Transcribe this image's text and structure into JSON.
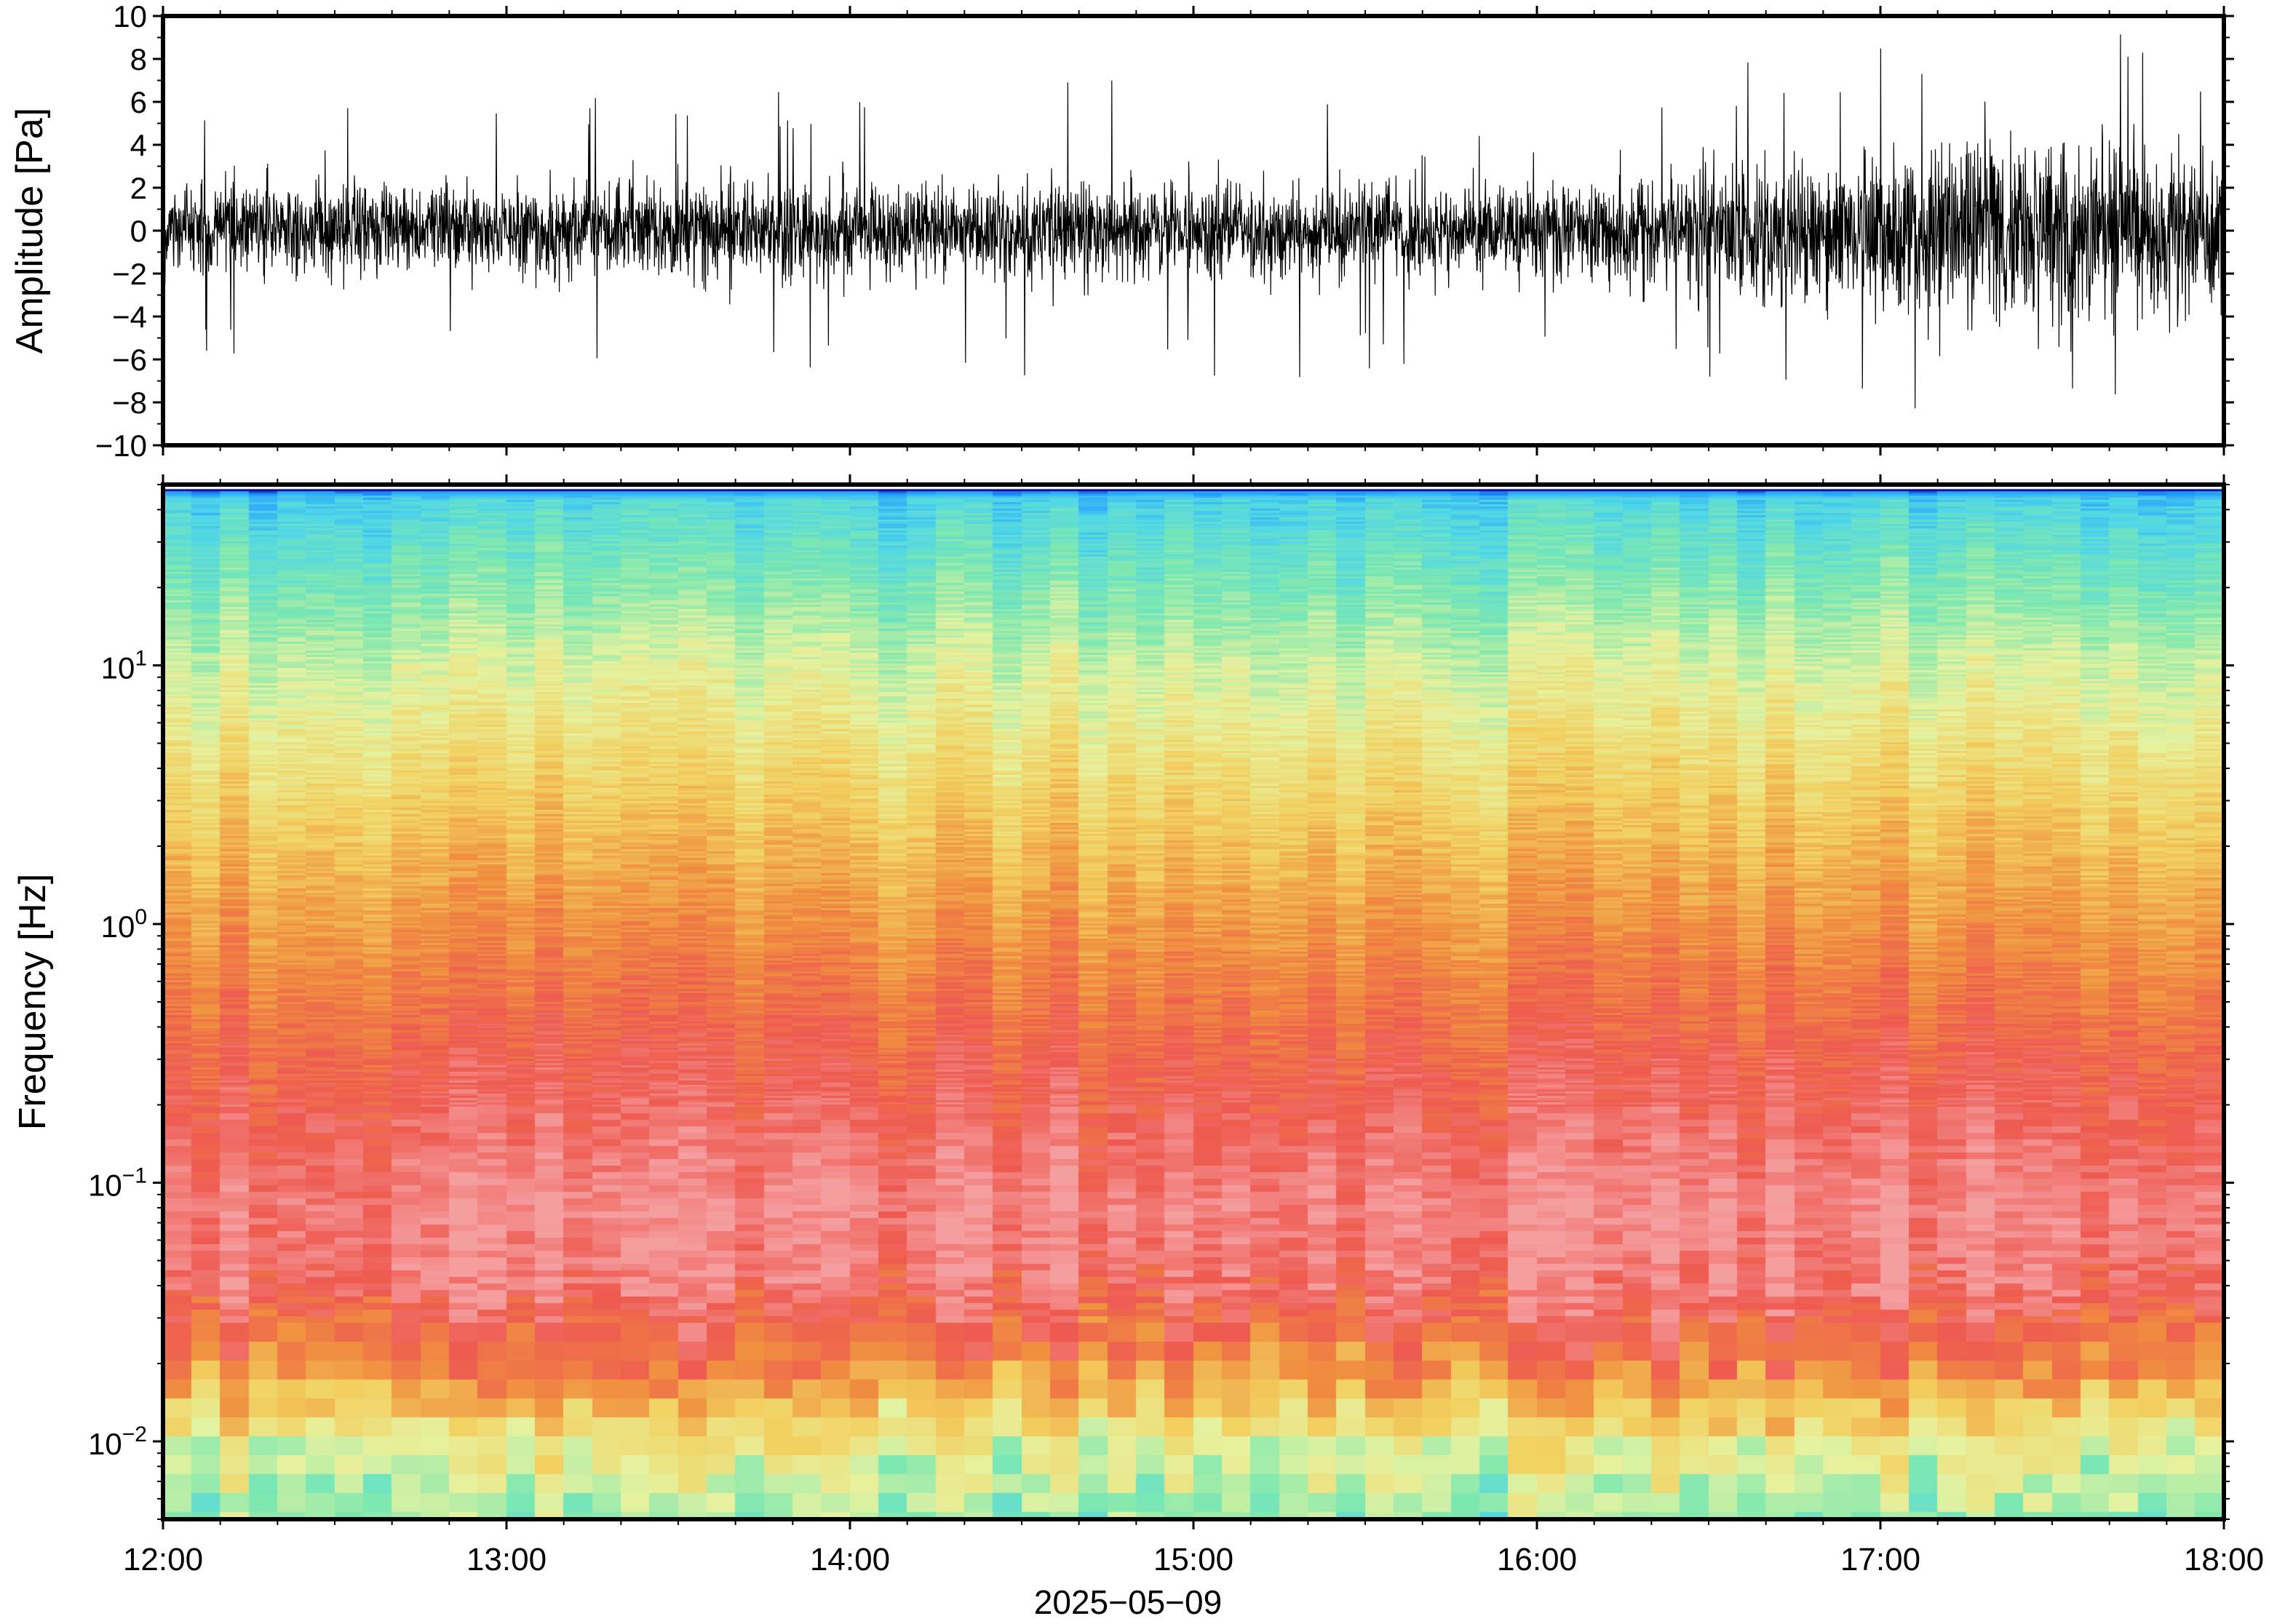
{
  "chart_data": [
    {
      "type": "line",
      "panel": "waveform",
      "title": "",
      "xlabel": "",
      "ylabel": "Amplitude [Pa]",
      "xlim": [
        "12:00",
        "18:00"
      ],
      "ylim": [
        -10,
        10
      ],
      "yticks": [
        10,
        8,
        6,
        4,
        2,
        0,
        -2,
        -4,
        -6,
        -8,
        -10
      ],
      "ytick_labels": [
        "10",
        "8",
        "6",
        "4",
        "2",
        "0",
        "−2",
        "−4",
        "−6",
        "−8",
        "−10"
      ],
      "series": [
        {
          "color": "#000000",
          "description_values": {
            "time": [
              "12:00",
              "13:00",
              "14:00",
              "15:00",
              "16:00",
              "17:00",
              "17:30",
              "18:00"
            ],
            "typical_envelope_pa": [
              2.5,
              2.5,
              2.6,
              2.6,
              2.4,
              4.5,
              5.0,
              4.5
            ],
            "peak_pa": [
              6.5,
              6.3,
              6.5,
              7.2,
              6.0,
              9.0,
              9.8,
              8.5
            ]
          }
        }
      ],
      "grid": false
    },
    {
      "type": "heatmap",
      "panel": "spectrogram",
      "title": "",
      "xlabel": "2025−05−09",
      "ylabel": "Frequency [Hz]",
      "xlim": [
        "12:00",
        "18:00"
      ],
      "xticks": [
        "12:00",
        "13:00",
        "14:00",
        "15:00",
        "16:00",
        "17:00",
        "18:00"
      ],
      "ylim": [
        0.005,
        50
      ],
      "yscale": "log",
      "yticks": [
        0.01,
        0.1,
        1,
        10
      ],
      "ytick_labels": [
        {
          "base": "10",
          "exp": "−2"
        },
        {
          "base": "10",
          "exp": "−1"
        },
        {
          "base": "10",
          "exp": "0"
        },
        {
          "base": "10",
          "exp": "1"
        }
      ],
      "colormap": "rainbow",
      "colormap_stops": [
        "#00008b",
        "#1e90ff",
        "#4fd6e8",
        "#7ee8b0",
        "#e6f2a0",
        "#f2d060",
        "#f09040",
        "#ee5a50",
        "#f59ea0"
      ],
      "relative_level_by_frequency_hz": [
        {
          "f": 0.005,
          "level": 0.4
        },
        {
          "f": 0.01,
          "level": 0.5
        },
        {
          "f": 0.02,
          "level": 0.75
        },
        {
          "f": 0.04,
          "level": 0.92
        },
        {
          "f": 0.08,
          "level": 0.96
        },
        {
          "f": 0.3,
          "level": 0.86
        },
        {
          "f": 1,
          "level": 0.74
        },
        {
          "f": 3,
          "level": 0.62
        },
        {
          "f": 10,
          "level": 0.48
        },
        {
          "f": 25,
          "level": 0.34
        },
        {
          "f": 45,
          "level": 0.25
        },
        {
          "f": 50,
          "level": 0.05
        }
      ],
      "grid": false
    }
  ]
}
